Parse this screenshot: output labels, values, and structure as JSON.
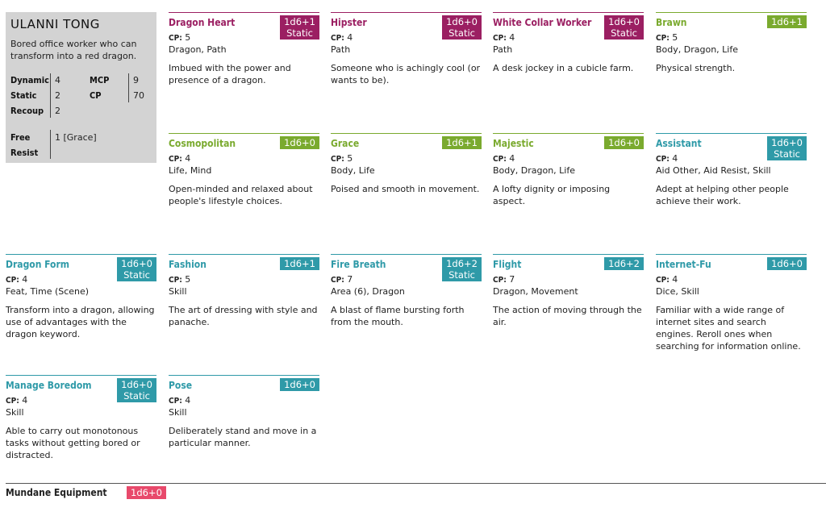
{
  "character": {
    "name": "ULANNI TONG",
    "description": "Bored office worker who can transform into a red dragon.",
    "stats": {
      "dynamic_label": "Dynamic",
      "dynamic_value": "4",
      "static_label": "Static",
      "static_value": "2",
      "recoup_label": "Recoup",
      "recoup_value": "2",
      "mcp_label": "MCP",
      "mcp_value": "9",
      "cp_label": "CP",
      "cp_value": "70",
      "free_label": "Free",
      "resist_label": "Resist",
      "free_resist_value": "1 [Grace]"
    }
  },
  "colors": {
    "path": "#9b1f62",
    "attribute": "#7aaa2e",
    "skill": "#2f9aa8",
    "equipment": "#e8496b"
  },
  "cp_label": "CP:",
  "cards": [
    {
      "title": "Dragon Heart",
      "badge_line1": "1d6+1",
      "badge_line2": "Static",
      "cp": "5",
      "keywords": "Dragon, Path",
      "body": "Imbued with the power and presence of a dragon.",
      "kind": "path"
    },
    {
      "title": "Hipster",
      "badge_line1": "1d6+0",
      "badge_line2": "Static",
      "cp": "4",
      "keywords": "Path",
      "body": "Someone who is achingly cool (or wants to be).",
      "kind": "path"
    },
    {
      "title": "White Collar Worker",
      "badge_line1": "1d6+0",
      "badge_line2": "Static",
      "cp": "4",
      "keywords": "Path",
      "body": "A desk jockey in a cubicle farm.",
      "kind": "path"
    },
    {
      "title": "Brawn",
      "badge_line1": "1d6+1",
      "badge_line2": "",
      "cp": "5",
      "keywords": "Body, Dragon, Life",
      "body": "Physical strength.",
      "kind": "attribute"
    },
    {
      "title": "Cosmopolitan",
      "badge_line1": "1d6+0",
      "badge_line2": "",
      "cp": "4",
      "keywords": "Life, Mind",
      "body": "Open-minded and relaxed about people's lifestyle choices.",
      "kind": "attribute"
    },
    {
      "title": "Grace",
      "badge_line1": "1d6+1",
      "badge_line2": "",
      "cp": "5",
      "keywords": "Body, Life",
      "body": "Poised and smooth in movement.",
      "kind": "attribute"
    },
    {
      "title": "Majestic",
      "badge_line1": "1d6+0",
      "badge_line2": "",
      "cp": "4",
      "keywords": "Body, Dragon, Life",
      "body": "A lofty dignity or imposing aspect.",
      "kind": "attribute"
    },
    {
      "title": "Assistant",
      "badge_line1": "1d6+0",
      "badge_line2": "Static",
      "cp": "4",
      "keywords": "Aid Other, Aid Resist, Skill",
      "body": "Adept at helping other people achieve their work.",
      "kind": "skill"
    },
    {
      "title": "Dragon Form",
      "badge_line1": "1d6+0",
      "badge_line2": "Static",
      "cp": "4",
      "keywords": "Feat, Time (Scene)",
      "body": "Transform into a dragon, allowing use of advantages with the dragon keyword.",
      "kind": "skill"
    },
    {
      "title": "Fashion",
      "badge_line1": "1d6+1",
      "badge_line2": "",
      "cp": "5",
      "keywords": "Skill",
      "body": "The art of dressing with style and panache.",
      "kind": "skill"
    },
    {
      "title": "Fire Breath",
      "badge_line1": "1d6+2",
      "badge_line2": "Static",
      "cp": "7",
      "keywords": "Area (6), Dragon",
      "body": "A blast of flame bursting forth from the mouth.",
      "kind": "skill"
    },
    {
      "title": "Flight",
      "badge_line1": "1d6+2",
      "badge_line2": "",
      "cp": "7",
      "keywords": "Dragon, Movement",
      "body": "The action of moving through the air.",
      "kind": "skill"
    },
    {
      "title": "Internet-Fu",
      "badge_line1": "1d6+0",
      "badge_line2": "",
      "cp": "4",
      "keywords": "Dice, Skill",
      "body": "Familiar with a wide range of internet sites and search engines. Reroll ones when searching for information online.",
      "kind": "skill"
    },
    {
      "title": "Manage Boredom",
      "badge_line1": "1d6+0",
      "badge_line2": "Static",
      "cp": "4",
      "keywords": "Skill",
      "body": "Able to carry out monotonous tasks without getting bored or distracted.",
      "kind": "skill"
    },
    {
      "title": "Pose",
      "badge_line1": "1d6+0",
      "badge_line2": "",
      "cp": "4",
      "keywords": "Skill",
      "body": "Deliberately stand and move in a particular manner.",
      "kind": "skill"
    }
  ],
  "equipment": {
    "label": "Mundane Equipment",
    "badge": "1d6+0"
  }
}
